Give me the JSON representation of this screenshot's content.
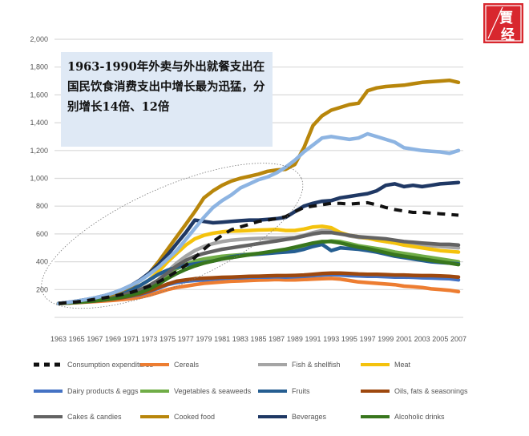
{
  "logo": {
    "glyph_top": "賈",
    "glyph_bottom": "经",
    "color": "#d8272e"
  },
  "annotation": {
    "text": "1963-1990年外卖与外出就餐支出在国民饮食消费支出中增长最为迅猛，分别增长14倍、12倍",
    "background": "#dfe9f5"
  },
  "chart_data": {
    "type": "line",
    "title": "",
    "xlabel": "",
    "ylabel": "",
    "ylim": [
      0,
      2000
    ],
    "yticks": [
      200,
      400,
      600,
      800,
      1000,
      1200,
      1400,
      1600,
      1800,
      2000
    ],
    "ytick_labels": [
      "200",
      "400",
      "600",
      "800",
      "1,000",
      "1,200",
      "1,400",
      "1,600",
      "1,800",
      "2,000"
    ],
    "x": [
      1963,
      1964,
      1965,
      1966,
      1967,
      1968,
      1969,
      1970,
      1971,
      1972,
      1973,
      1974,
      1975,
      1976,
      1977,
      1978,
      1979,
      1980,
      1981,
      1982,
      1983,
      1984,
      1985,
      1986,
      1987,
      1988,
      1989,
      1990,
      1991,
      1992,
      1993,
      1994,
      1995,
      1996,
      1997,
      1998,
      1999,
      2000,
      2001,
      2002,
      2003,
      2004,
      2005,
      2006,
      2007
    ],
    "xticks": [
      "1963",
      "1965",
      "1967",
      "1969",
      "1971",
      "1973",
      "1975",
      "1977",
      "1979",
      "1981",
      "1983",
      "1985",
      "1987",
      "1989",
      "1991",
      "1993",
      "1995",
      "1997",
      "1999",
      "2001",
      "2003",
      "2005",
      "2007"
    ],
    "grid": true,
    "legend_position": "bottom",
    "highlight_ellipse": {
      "x_range": [
        1961,
        1990
      ],
      "y_range": [
        0,
        1220
      ],
      "style": "dotted"
    },
    "series": [
      {
        "name": "Consumption expenditures",
        "color": "#111111",
        "dashed": true,
        "in_legend": true,
        "values": [
          100,
          106,
          112,
          120,
          130,
          140,
          152,
          165,
          180,
          200,
          225,
          255,
          290,
          330,
          375,
          430,
          490,
          545,
          590,
          630,
          650,
          670,
          690,
          700,
          710,
          725,
          760,
          790,
          800,
          810,
          820,
          820,
          815,
          820,
          825,
          810,
          790,
          775,
          765,
          755,
          755,
          750,
          745,
          740,
          735
        ]
      },
      {
        "name": "Cereals",
        "color": "#ed7d31",
        "in_legend": true,
        "values": [
          100,
          103,
          106,
          110,
          114,
          118,
          122,
          128,
          135,
          145,
          160,
          180,
          200,
          215,
          225,
          235,
          245,
          250,
          255,
          260,
          262,
          265,
          268,
          270,
          272,
          270,
          270,
          272,
          275,
          278,
          280,
          275,
          265,
          255,
          250,
          245,
          240,
          235,
          225,
          220,
          215,
          205,
          200,
          195,
          185
        ]
      },
      {
        "name": "Fish & shellfish",
        "color": "#a5a5a5",
        "in_legend": true,
        "values": [
          100,
          105,
          110,
          118,
          126,
          135,
          145,
          158,
          175,
          195,
          225,
          270,
          330,
          390,
          440,
          480,
          510,
          530,
          545,
          555,
          560,
          565,
          568,
          570,
          570,
          572,
          575,
          590,
          610,
          625,
          620,
          605,
          585,
          575,
          570,
          560,
          545,
          535,
          530,
          525,
          520,
          515,
          510,
          505,
          500
        ]
      },
      {
        "name": "Meat",
        "color": "#f4c20d",
        "in_legend": true,
        "values": [
          100,
          106,
          113,
          122,
          132,
          145,
          160,
          178,
          200,
          230,
          270,
          330,
          400,
          460,
          520,
          565,
          590,
          605,
          615,
          620,
          622,
          625,
          628,
          630,
          632,
          625,
          625,
          635,
          650,
          655,
          645,
          610,
          590,
          580,
          570,
          555,
          545,
          535,
          520,
          510,
          500,
          490,
          480,
          475,
          470
        ]
      },
      {
        "name": "Dairy products & eggs",
        "color": "#4472c4",
        "in_legend": true,
        "values": [
          100,
          104,
          108,
          113,
          118,
          125,
          133,
          142,
          152,
          165,
          185,
          210,
          235,
          250,
          260,
          265,
          270,
          275,
          280,
          285,
          285,
          288,
          290,
          290,
          292,
          290,
          292,
          295,
          300,
          305,
          308,
          305,
          300,
          298,
          295,
          295,
          292,
          290,
          290,
          288,
          285,
          283,
          280,
          278,
          270
        ]
      },
      {
        "name": "Vegetables & seaweeds",
        "color": "#70ad47",
        "in_legend": true,
        "values": [
          100,
          104,
          108,
          114,
          120,
          128,
          138,
          150,
          165,
          185,
          215,
          260,
          310,
          350,
          380,
          405,
          420,
          430,
          440,
          445,
          450,
          455,
          460,
          465,
          470,
          480,
          495,
          510,
          525,
          540,
          550,
          545,
          530,
          515,
          505,
          495,
          485,
          470,
          460,
          450,
          440,
          430,
          420,
          410,
          400
        ]
      },
      {
        "name": "Fruits",
        "color": "#255e91",
        "in_legend": true,
        "values": [
          100,
          105,
          110,
          118,
          128,
          140,
          155,
          175,
          200,
          230,
          270,
          310,
          340,
          360,
          375,
          385,
          395,
          405,
          420,
          435,
          445,
          450,
          455,
          460,
          465,
          470,
          475,
          490,
          510,
          525,
          480,
          500,
          495,
          490,
          480,
          470,
          455,
          440,
          430,
          420,
          410,
          400,
          395,
          390,
          385
        ]
      },
      {
        "name": "Oils, fats & seasonings",
        "color": "#9e480e",
        "in_legend": true,
        "values": [
          100,
          103,
          107,
          112,
          118,
          125,
          133,
          142,
          155,
          170,
          190,
          215,
          240,
          260,
          270,
          278,
          282,
          285,
          288,
          290,
          292,
          295,
          296,
          298,
          300,
          300,
          302,
          305,
          310,
          315,
          318,
          318,
          315,
          312,
          310,
          310,
          308,
          305,
          305,
          302,
          300,
          300,
          298,
          295,
          290
        ]
      },
      {
        "name": "Cakes & candies",
        "color": "#636363",
        "in_legend": true,
        "values": [
          100,
          105,
          110,
          117,
          125,
          135,
          147,
          160,
          178,
          200,
          230,
          270,
          320,
          370,
          410,
          440,
          460,
          475,
          490,
          500,
          510,
          520,
          530,
          540,
          550,
          560,
          570,
          585,
          600,
          610,
          610,
          600,
          590,
          580,
          575,
          570,
          565,
          555,
          545,
          540,
          535,
          530,
          525,
          525,
          520
        ]
      },
      {
        "name": "Cooked food",
        "color": "#b8860b",
        "in_legend": true,
        "values": [
          100,
          106,
          113,
          122,
          133,
          148,
          168,
          195,
          225,
          265,
          320,
          400,
          490,
          580,
          670,
          760,
          860,
          910,
          950,
          980,
          1000,
          1015,
          1030,
          1050,
          1060,
          1065,
          1100,
          1220,
          1380,
          1450,
          1490,
          1510,
          1530,
          1540,
          1630,
          1650,
          1660,
          1665,
          1670,
          1680,
          1690,
          1695,
          1700,
          1705,
          1690
        ]
      },
      {
        "name": "Beverages",
        "color": "#1f3864",
        "in_legend": true,
        "values": [
          100,
          108,
          117,
          128,
          140,
          155,
          175,
          200,
          230,
          270,
          320,
          380,
          450,
          530,
          610,
          700,
          690,
          680,
          685,
          690,
          695,
          700,
          700,
          705,
          710,
          720,
          760,
          800,
          820,
          835,
          840,
          860,
          870,
          880,
          890,
          910,
          950,
          960,
          940,
          950,
          940,
          950,
          960,
          965,
          970
        ]
      },
      {
        "name": "Alcoholic drinks",
        "color": "#38761d",
        "in_legend": true,
        "values": [
          100,
          104,
          108,
          113,
          119,
          126,
          135,
          146,
          160,
          178,
          205,
          240,
          280,
          315,
          345,
          370,
          390,
          405,
          420,
          430,
          440,
          450,
          460,
          470,
          480,
          490,
          505,
          520,
          535,
          545,
          545,
          535,
          520,
          505,
          495,
          480,
          465,
          450,
          440,
          430,
          420,
          410,
          400,
          390,
          380
        ]
      },
      {
        "name": "",
        "color": "#8db4e2",
        "in_legend": false,
        "values": [
          100,
          108,
          117,
          128,
          140,
          155,
          175,
          200,
          230,
          265,
          310,
          360,
          420,
          480,
          560,
          640,
          720,
          790,
          840,
          880,
          930,
          960,
          990,
          1010,
          1040,
          1080,
          1130,
          1190,
          1240,
          1290,
          1300,
          1290,
          1280,
          1290,
          1320,
          1300,
          1280,
          1260,
          1220,
          1210,
          1200,
          1195,
          1190,
          1180,
          1200
        ]
      }
    ]
  }
}
